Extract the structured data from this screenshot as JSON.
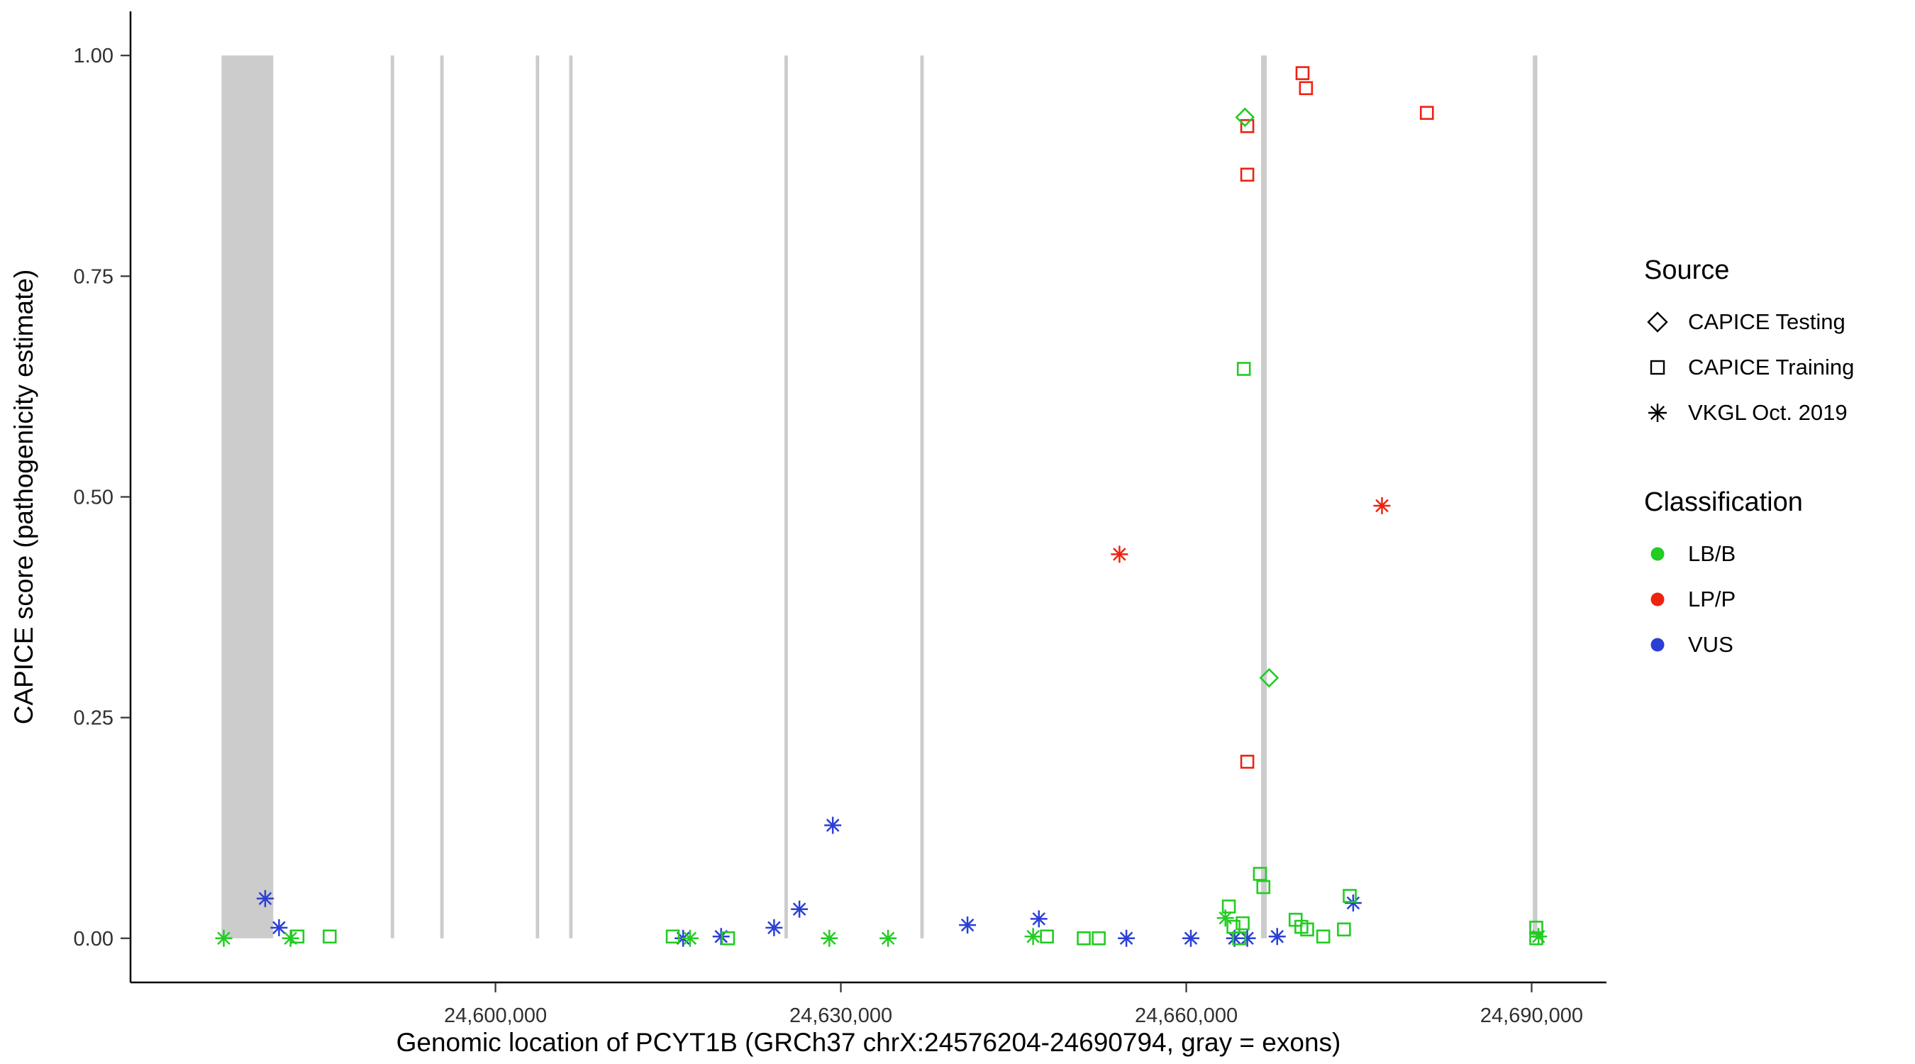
{
  "legend": {
    "source": {
      "title": "Source",
      "items": [
        {
          "label": "CAPICE Testing",
          "shape": "diamond"
        },
        {
          "label": "CAPICE Training",
          "shape": "square"
        },
        {
          "label": "VKGL Oct. 2019",
          "shape": "asterisk"
        }
      ]
    },
    "classification": {
      "title": "Classification",
      "items": [
        {
          "label": "LB/B",
          "color": "#22cc22"
        },
        {
          "label": "LP/P",
          "color": "#ee2211"
        },
        {
          "label": "VUS",
          "color": "#2b3fd6"
        }
      ]
    }
  },
  "chart_data": {
    "type": "scatter",
    "title": "",
    "xlabel": "Genomic location of PCYT1B (GRCh37 chrX:24576204-24690794, gray = exons)",
    "ylabel": "CAPICE score (pathogenicity estimate)",
    "xlim": [
      24568300,
      24696500
    ],
    "ylim": [
      -0.05,
      1.05
    ],
    "grid": false,
    "legend_position": "right",
    "x_ticks": [
      {
        "value": 24600000,
        "label": "24,600,000"
      },
      {
        "value": 24630000,
        "label": "24,630,000"
      },
      {
        "value": 24660000,
        "label": "24,660,000"
      },
      {
        "value": 24690000,
        "label": "24,690,000"
      }
    ],
    "y_ticks": [
      {
        "value": 0.0,
        "label": "0.00"
      },
      {
        "value": 0.25,
        "label": "0.25"
      },
      {
        "value": 0.5,
        "label": "0.50"
      },
      {
        "value": 0.75,
        "label": "0.75"
      },
      {
        "value": 1.0,
        "label": "1.00"
      }
    ],
    "exon_color": "#cccccc",
    "exons": [
      {
        "start": 24576204,
        "end": 24580700
      },
      {
        "start": 24590900,
        "end": 24591200
      },
      {
        "start": 24595200,
        "end": 24595500
      },
      {
        "start": 24603500,
        "end": 24603800
      },
      {
        "start": 24606400,
        "end": 24606700
      },
      {
        "start": 24625100,
        "end": 24625400
      },
      {
        "start": 24636900,
        "end": 24637200
      },
      {
        "start": 24666500,
        "end": 24667000
      },
      {
        "start": 24690100,
        "end": 24690500
      }
    ],
    "shape_by_source": {
      "CAPICE Testing": "diamond",
      "CAPICE Training": "square",
      "VKGL Oct. 2019": "asterisk"
    },
    "color_by_class": {
      "LB/B": "#22cc22",
      "LP/P": "#ee2211",
      "VUS": "#2b3fd6"
    },
    "points": [
      {
        "source": "VKGL Oct. 2019",
        "classification": "LB/B",
        "x": 24576400,
        "y": 0.0
      },
      {
        "source": "VKGL Oct. 2019",
        "classification": "VUS",
        "x": 24580000,
        "y": 0.045
      },
      {
        "source": "VKGL Oct. 2019",
        "classification": "VUS",
        "x": 24581200,
        "y": 0.012
      },
      {
        "source": "VKGL Oct. 2019",
        "classification": "LB/B",
        "x": 24582200,
        "y": 0.0
      },
      {
        "source": "VKGL Oct. 2019",
        "classification": "VUS",
        "x": 24616300,
        "y": 0.0
      },
      {
        "source": "VKGL Oct. 2019",
        "classification": "LB/B",
        "x": 24616900,
        "y": 0.0
      },
      {
        "source": "VKGL Oct. 2019",
        "classification": "VUS",
        "x": 24619600,
        "y": 0.002
      },
      {
        "source": "VKGL Oct. 2019",
        "classification": "VUS",
        "x": 24624200,
        "y": 0.012
      },
      {
        "source": "VKGL Oct. 2019",
        "classification": "VUS",
        "x": 24626400,
        "y": 0.033
      },
      {
        "source": "VKGL Oct. 2019",
        "classification": "VUS",
        "x": 24629300,
        "y": 0.128
      },
      {
        "source": "VKGL Oct. 2019",
        "classification": "LB/B",
        "x": 24629000,
        "y": 0.0
      },
      {
        "source": "VKGL Oct. 2019",
        "classification": "LB/B",
        "x": 24634100,
        "y": 0.0
      },
      {
        "source": "VKGL Oct. 2019",
        "classification": "VUS",
        "x": 24641000,
        "y": 0.015
      },
      {
        "source": "VKGL Oct. 2019",
        "classification": "VUS",
        "x": 24647200,
        "y": 0.022
      },
      {
        "source": "VKGL Oct. 2019",
        "classification": "LB/B",
        "x": 24646700,
        "y": 0.002
      },
      {
        "source": "VKGL Oct. 2019",
        "classification": "VUS",
        "x": 24654800,
        "y": 0.0
      },
      {
        "source": "VKGL Oct. 2019",
        "classification": "LP/P",
        "x": 24654200,
        "y": 0.435
      },
      {
        "source": "VKGL Oct. 2019",
        "classification": "VUS",
        "x": 24660400,
        "y": 0.0
      },
      {
        "source": "VKGL Oct. 2019",
        "classification": "LB/B",
        "x": 24663400,
        "y": 0.023
      },
      {
        "source": "VKGL Oct. 2019",
        "classification": "VUS",
        "x": 24664200,
        "y": 0.0
      },
      {
        "source": "VKGL Oct. 2019",
        "classification": "VUS",
        "x": 24665300,
        "y": 0.0
      },
      {
        "source": "VKGL Oct. 2019",
        "classification": "VUS",
        "x": 24667900,
        "y": 0.002
      },
      {
        "source": "VKGL Oct. 2019",
        "classification": "VUS",
        "x": 24674500,
        "y": 0.04
      },
      {
        "source": "VKGL Oct. 2019",
        "classification": "LP/P",
        "x": 24677000,
        "y": 0.49
      },
      {
        "source": "VKGL Oct. 2019",
        "classification": "LB/B",
        "x": 24690600,
        "y": 0.002
      },
      {
        "source": "CAPICE Training",
        "classification": "LB/B",
        "x": 24582800,
        "y": 0.002
      },
      {
        "source": "CAPICE Training",
        "classification": "LB/B",
        "x": 24585600,
        "y": 0.002
      },
      {
        "source": "CAPICE Training",
        "classification": "LB/B",
        "x": 24615400,
        "y": 0.002
      },
      {
        "source": "CAPICE Training",
        "classification": "LB/B",
        "x": 24620200,
        "y": 0.0
      },
      {
        "source": "CAPICE Training",
        "classification": "LB/B",
        "x": 24647900,
        "y": 0.002
      },
      {
        "source": "CAPICE Training",
        "classification": "LB/B",
        "x": 24651100,
        "y": 0.0
      },
      {
        "source": "CAPICE Training",
        "classification": "LB/B",
        "x": 24652400,
        "y": 0.0
      },
      {
        "source": "CAPICE Training",
        "classification": "LB/B",
        "x": 24663700,
        "y": 0.036
      },
      {
        "source": "CAPICE Training",
        "classification": "LB/B",
        "x": 24664100,
        "y": 0.013
      },
      {
        "source": "CAPICE Training",
        "classification": "LB/B",
        "x": 24664900,
        "y": 0.017
      },
      {
        "source": "CAPICE Training",
        "classification": "LB/B",
        "x": 24664600,
        "y": 0.0
      },
      {
        "source": "CAPICE Training",
        "classification": "LB/B",
        "x": 24666400,
        "y": 0.073
      },
      {
        "source": "CAPICE Training",
        "classification": "LB/B",
        "x": 24666700,
        "y": 0.058
      },
      {
        "source": "CAPICE Training",
        "classification": "LB/B",
        "x": 24669500,
        "y": 0.021
      },
      {
        "source": "CAPICE Training",
        "classification": "LB/B",
        "x": 24670000,
        "y": 0.013
      },
      {
        "source": "CAPICE Training",
        "classification": "LB/B",
        "x": 24670500,
        "y": 0.01
      },
      {
        "source": "CAPICE Training",
        "classification": "LB/B",
        "x": 24671900,
        "y": 0.002
      },
      {
        "source": "CAPICE Training",
        "classification": "LB/B",
        "x": 24673700,
        "y": 0.01
      },
      {
        "source": "CAPICE Training",
        "classification": "LB/B",
        "x": 24674200,
        "y": 0.048
      },
      {
        "source": "CAPICE Training",
        "classification": "LP/P",
        "x": 24670100,
        "y": 0.98
      },
      {
        "source": "CAPICE Training",
        "classification": "LP/P",
        "x": 24670400,
        "y": 0.963
      },
      {
        "source": "CAPICE Training",
        "classification": "LP/P",
        "x": 24680900,
        "y": 0.935
      },
      {
        "source": "CAPICE Training",
        "classification": "LP/P",
        "x": 24665300,
        "y": 0.92
      },
      {
        "source": "CAPICE Training",
        "classification": "LP/P",
        "x": 24665300,
        "y": 0.865
      },
      {
        "source": "CAPICE Training",
        "classification": "LB/B",
        "x": 24665000,
        "y": 0.645
      },
      {
        "source": "CAPICE Training",
        "classification": "LP/P",
        "x": 24665300,
        "y": 0.2
      },
      {
        "source": "CAPICE Training",
        "classification": "LB/B",
        "x": 24690400,
        "y": 0.012
      },
      {
        "source": "CAPICE Training",
        "classification": "LB/B",
        "x": 24690400,
        "y": 0.0
      },
      {
        "source": "CAPICE Testing",
        "classification": "LB/B",
        "x": 24665100,
        "y": 0.93
      },
      {
        "source": "CAPICE Testing",
        "classification": "LB/B",
        "x": 24667200,
        "y": 0.295
      }
    ]
  }
}
